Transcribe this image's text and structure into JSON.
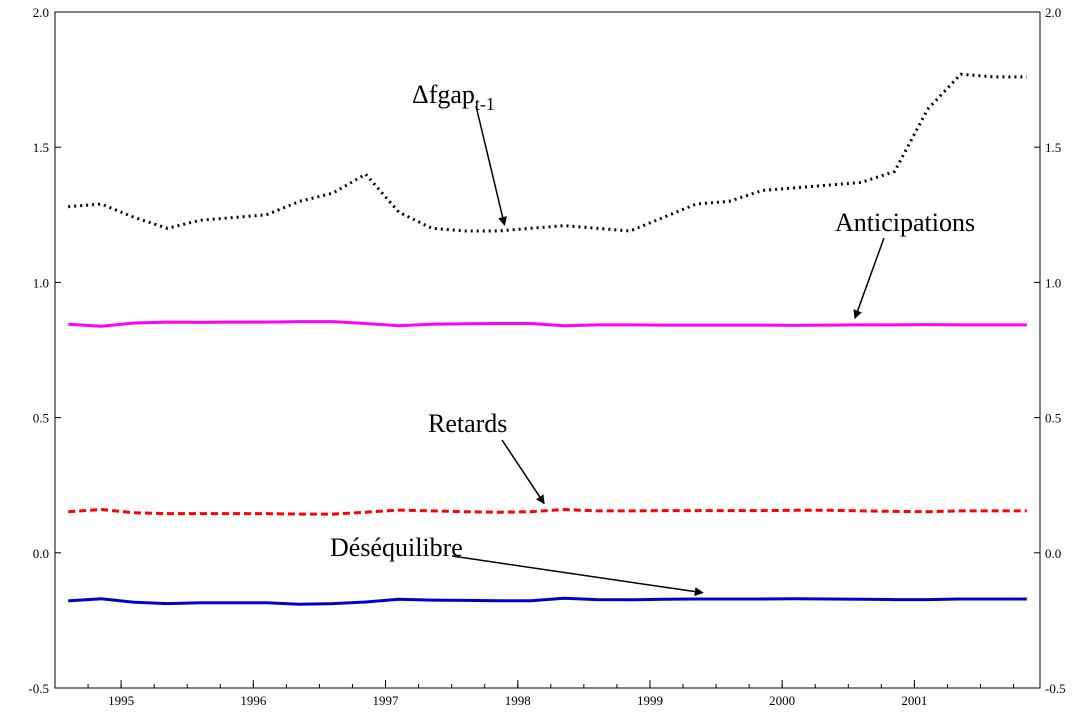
{
  "chart_data": {
    "type": "line",
    "x": [
      1994.6,
      1994.85,
      1995.1,
      1995.35,
      1995.6,
      1995.85,
      1996.1,
      1996.35,
      1996.6,
      1996.85,
      1997.1,
      1997.35,
      1997.6,
      1997.85,
      1998.1,
      1998.35,
      1998.6,
      1998.85,
      1999.1,
      1999.35,
      1999.6,
      1999.85,
      2000.1,
      2000.35,
      2000.6,
      2000.85,
      2001.1,
      2001.35,
      2001.6,
      2001.85
    ],
    "series": [
      {
        "id": "dfgap",
        "color": "#000000",
        "style": "dotted",
        "values": [
          1.28,
          1.29,
          1.24,
          1.2,
          1.23,
          1.24,
          1.25,
          1.3,
          1.33,
          1.4,
          1.26,
          1.2,
          1.19,
          1.19,
          1.2,
          1.21,
          1.2,
          1.19,
          1.24,
          1.29,
          1.3,
          1.34,
          1.35,
          1.36,
          1.37,
          1.41,
          1.64,
          1.77,
          1.76,
          1.76
        ]
      },
      {
        "id": "anticipations",
        "color": "#ff00ff",
        "style": "solid",
        "values": [
          0.845,
          0.838,
          0.85,
          0.853,
          0.852,
          0.853,
          0.853,
          0.855,
          0.855,
          0.848,
          0.84,
          0.845,
          0.847,
          0.848,
          0.848,
          0.84,
          0.843,
          0.843,
          0.842,
          0.842,
          0.842,
          0.842,
          0.841,
          0.842,
          0.843,
          0.843,
          0.844,
          0.843,
          0.843,
          0.843
        ]
      },
      {
        "id": "retards",
        "color": "#ff0000",
        "style": "dashed",
        "values": [
          0.152,
          0.16,
          0.148,
          0.145,
          0.145,
          0.145,
          0.145,
          0.143,
          0.143,
          0.15,
          0.158,
          0.155,
          0.152,
          0.15,
          0.152,
          0.16,
          0.155,
          0.155,
          0.156,
          0.156,
          0.156,
          0.156,
          0.157,
          0.157,
          0.155,
          0.153,
          0.152,
          0.155,
          0.155,
          0.155
        ]
      },
      {
        "id": "desequilibre",
        "color": "#0000cc",
        "style": "solid",
        "values": [
          -0.178,
          -0.17,
          -0.183,
          -0.188,
          -0.185,
          -0.185,
          -0.185,
          -0.19,
          -0.188,
          -0.182,
          -0.172,
          -0.175,
          -0.176,
          -0.177,
          -0.177,
          -0.168,
          -0.173,
          -0.174,
          -0.172,
          -0.171,
          -0.171,
          -0.171,
          -0.17,
          -0.171,
          -0.172,
          -0.173,
          -0.173,
          -0.171,
          -0.171,
          -0.171
        ]
      }
    ],
    "annotations": [
      {
        "main": "Δfgap",
        "sub": "t-1",
        "series": "dfgap",
        "point_x": 1997.9,
        "point_y": 1.19
      },
      {
        "main": "Anticipations",
        "series": "anticipations",
        "point_x": 2000.55,
        "point_y": 0.845
      },
      {
        "main": "Retards",
        "series": "retards",
        "point_x": 1998.2,
        "point_y": 0.16
      },
      {
        "main": "Déséquilibre",
        "series": "desequilibre",
        "point_x": 1999.4,
        "point_y": -0.17
      }
    ],
    "x_ticks": [
      {
        "value": 1995.0,
        "label": "1995"
      },
      {
        "value": 1996.0,
        "label": "1996"
      },
      {
        "value": 1997.0,
        "label": "1997"
      },
      {
        "value": 1998.0,
        "label": "1998"
      },
      {
        "value": 1999.0,
        "label": "1999"
      },
      {
        "value": 2000.0,
        "label": "2000"
      },
      {
        "value": 2001.0,
        "label": "2001"
      }
    ],
    "y_ticks": [
      {
        "value": -0.5,
        "label": "-0.5"
      },
      {
        "value": 0.0,
        "label": "0.0"
      },
      {
        "value": 0.5,
        "label": "0.5"
      },
      {
        "value": 1.0,
        "label": "1.0"
      },
      {
        "value": 1.5,
        "label": "1.5"
      },
      {
        "value": 2.0,
        "label": "2.0"
      }
    ],
    "xlim": [
      1994.5,
      2001.95
    ],
    "ylim": [
      -0.5,
      2.0
    ],
    "grid": false,
    "legend": "none",
    "title": "",
    "xlabel": "",
    "ylabel": ""
  }
}
